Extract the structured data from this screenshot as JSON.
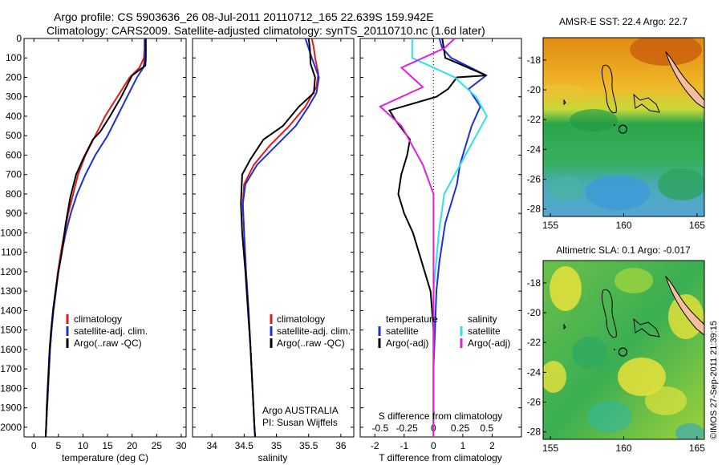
{
  "title": {
    "line1": "Argo profile: CS 5903636_26 08-Jul-2011 20110712_165 22.639S 159.942E",
    "line2": "Climatology: CARS2009. Satellite-adjusted climatology: synTS_20110710.nc (1.6d later)"
  },
  "footer_credit": "©IMOS 27-Sep-2011 21:39:15",
  "colors": {
    "climatology": "#e31a1c",
    "satellite": "#1f2fd6",
    "argo": "#000000",
    "salinity_satellite": "#2fe0e8",
    "salinity_argo": "#e020e0"
  },
  "chart_data": [
    {
      "type": "line",
      "name": "temperature-profile",
      "xlabel": "temperature (deg C)",
      "ylabel": "",
      "xlim": [
        -2,
        31
      ],
      "ylim": [
        2050,
        0
      ],
      "xticks": [
        0,
        5,
        10,
        15,
        20,
        25,
        30
      ],
      "yticks": [
        0,
        100,
        200,
        300,
        400,
        500,
        600,
        700,
        800,
        900,
        1000,
        1100,
        1200,
        1300,
        1400,
        1500,
        1600,
        1700,
        1800,
        1900,
        2000
      ],
      "legend": [
        "climatology",
        "satellite-adj. clim.",
        "Argo(..raw -QC)"
      ],
      "series": [
        {
          "name": "climatology",
          "color_key": "climatology",
          "points": [
            [
              22.5,
              0
            ],
            [
              22.5,
              50
            ],
            [
              22.4,
              100
            ],
            [
              21.5,
              150
            ],
            [
              19.5,
              200
            ],
            [
              17,
              300
            ],
            [
              14.5,
              400
            ],
            [
              12.5,
              500
            ],
            [
              10.5,
              600
            ],
            [
              9,
              700
            ],
            [
              8,
              800
            ],
            [
              7,
              900
            ],
            [
              6.2,
              1000
            ],
            [
              5.5,
              1100
            ],
            [
              4.9,
              1200
            ],
            [
              4.4,
              1300
            ],
            [
              3.9,
              1400
            ],
            [
              3.6,
              1500
            ],
            [
              3.3,
              1600
            ],
            [
              3.1,
              1700
            ],
            [
              2.9,
              1800
            ],
            [
              2.7,
              1900
            ],
            [
              2.5,
              2000
            ],
            [
              2.4,
              2050
            ]
          ]
        },
        {
          "name": "satellite-adj. clim.",
          "color_key": "satellite",
          "points": [
            [
              22.7,
              0
            ],
            [
              22.7,
              50
            ],
            [
              22.6,
              100
            ],
            [
              22.3,
              150
            ],
            [
              21,
              200
            ],
            [
              19,
              300
            ],
            [
              17,
              400
            ],
            [
              15,
              500
            ],
            [
              12.5,
              600
            ],
            [
              10.5,
              700
            ],
            [
              8.8,
              800
            ],
            [
              7.5,
              900
            ],
            [
              6.5,
              1000
            ],
            [
              5.7,
              1100
            ],
            [
              5,
              1200
            ],
            [
              4.5,
              1300
            ],
            [
              4,
              1400
            ],
            [
              3.6,
              1500
            ],
            [
              3.3,
              1600
            ],
            [
              3.1,
              1700
            ],
            [
              2.9,
              1800
            ],
            [
              2.7,
              1900
            ],
            [
              2.5,
              2000
            ],
            [
              2.4,
              2050
            ]
          ]
        },
        {
          "name": "Argo(..raw -QC)",
          "color_key": "argo",
          "points": [
            [
              22.8,
              0
            ],
            [
              22.8,
              50
            ],
            [
              22.8,
              100
            ],
            [
              22.7,
              140
            ],
            [
              20,
              190
            ],
            [
              17.8,
              300
            ],
            [
              15.5,
              400
            ],
            [
              13.5,
              480
            ],
            [
              12,
              520
            ],
            [
              10,
              620
            ],
            [
              8.6,
              700
            ],
            [
              7.4,
              820
            ],
            [
              6.5,
              950
            ],
            [
              5.7,
              1100
            ],
            [
              5,
              1200
            ],
            [
              4.4,
              1300
            ],
            [
              3.9,
              1400
            ],
            [
              3.5,
              1500
            ],
            [
              3.2,
              1600
            ],
            [
              3,
              1700
            ],
            [
              2.8,
              1800
            ],
            [
              2.6,
              1900
            ],
            [
              2.5,
              2000
            ],
            [
              2.4,
              2050
            ]
          ]
        }
      ]
    },
    {
      "type": "line",
      "name": "salinity-profile",
      "xlabel": "salinity",
      "ylabel": "",
      "xlim": [
        33.7,
        36.2
      ],
      "ylim": [
        2050,
        0
      ],
      "xticks": [
        34,
        34.5,
        35,
        35.5,
        36
      ],
      "legend": [
        "climatology",
        "satellite-adj. clim.",
        "Argo(..raw -QC)"
      ],
      "annotation": [
        "Argo AUSTRALIA",
        "PI: Susan Wijffels"
      ],
      "series": [
        {
          "name": "climatology",
          "color_key": "climatology",
          "points": [
            [
              35.55,
              0
            ],
            [
              35.58,
              50
            ],
            [
              35.6,
              100
            ],
            [
              35.65,
              180
            ],
            [
              35.62,
              250
            ],
            [
              35.45,
              350
            ],
            [
              35.2,
              450
            ],
            [
              34.9,
              550
            ],
            [
              34.65,
              650
            ],
            [
              34.5,
              750
            ],
            [
              34.48,
              850
            ],
            [
              34.5,
              1000
            ],
            [
              34.53,
              1200
            ],
            [
              34.57,
              1400
            ],
            [
              34.6,
              1600
            ],
            [
              34.63,
              1800
            ],
            [
              34.66,
              2000
            ],
            [
              34.67,
              2050
            ]
          ]
        },
        {
          "name": "satellite-adj. clim.",
          "color_key": "satellite",
          "points": [
            [
              35.45,
              0
            ],
            [
              35.5,
              50
            ],
            [
              35.55,
              100
            ],
            [
              35.66,
              200
            ],
            [
              35.62,
              280
            ],
            [
              35.5,
              350
            ],
            [
              35.3,
              450
            ],
            [
              35,
              550
            ],
            [
              34.7,
              650
            ],
            [
              34.52,
              750
            ],
            [
              34.48,
              850
            ],
            [
              34.5,
              1000
            ],
            [
              34.53,
              1200
            ],
            [
              34.57,
              1400
            ],
            [
              34.6,
              1600
            ],
            [
              34.63,
              1800
            ],
            [
              34.66,
              2000
            ],
            [
              34.67,
              2050
            ]
          ]
        },
        {
          "name": "Argo(..raw -QC)",
          "color_key": "argo",
          "points": [
            [
              35.5,
              0
            ],
            [
              35.52,
              50
            ],
            [
              35.53,
              130
            ],
            [
              35.6,
              200
            ],
            [
              35.58,
              280
            ],
            [
              35.35,
              350
            ],
            [
              35.1,
              450
            ],
            [
              34.8,
              520
            ],
            [
              34.6,
              620
            ],
            [
              34.47,
              700
            ],
            [
              34.45,
              850
            ],
            [
              34.47,
              1000
            ],
            [
              34.52,
              1200
            ],
            [
              34.56,
              1400
            ],
            [
              34.6,
              1600
            ],
            [
              34.63,
              1800
            ],
            [
              34.66,
              2000
            ],
            [
              34.67,
              2050
            ]
          ]
        }
      ]
    },
    {
      "type": "line",
      "name": "difference-profile",
      "xlabel": "T difference from climatology",
      "xlabel_top": "S difference from climatology",
      "xlim": [
        -2.5,
        3
      ],
      "ylim": [
        2050,
        0
      ],
      "xticks": [
        -2,
        -1,
        0,
        1,
        2
      ],
      "xticks_s": [
        -0.5,
        -0.25,
        0,
        0.25,
        0.5
      ],
      "legend_temperature": {
        "title": "temperature",
        "items": [
          "satellite",
          "Argo(-adj)"
        ]
      },
      "legend_salinity": {
        "title": "salinity",
        "items": [
          "satellite",
          "Argo(-adj)"
        ]
      },
      "series": [
        {
          "name": "satellite",
          "group": "temperature",
          "color_key": "satellite",
          "points": [
            [
              0.2,
              0
            ],
            [
              0.3,
              50
            ],
            [
              0.6,
              100
            ],
            [
              1.8,
              190
            ],
            [
              1.2,
              260
            ],
            [
              1.6,
              350
            ],
            [
              1.3,
              450
            ],
            [
              1.1,
              550
            ],
            [
              0.9,
              650
            ],
            [
              0.8,
              750
            ],
            [
              0.6,
              850
            ],
            [
              0.4,
              950
            ],
            [
              0.3,
              1050
            ],
            [
              0.2,
              1150
            ],
            [
              0.1,
              1300
            ],
            [
              0.05,
              1500
            ],
            [
              0,
              1700
            ],
            [
              0,
              2050
            ]
          ]
        },
        {
          "name": "Argo(-adj)",
          "group": "temperature",
          "color_key": "argo",
          "points": [
            [
              0.3,
              0
            ],
            [
              0.4,
              100
            ],
            [
              1.8,
              190
            ],
            [
              0.8,
              200
            ],
            [
              0.5,
              260
            ],
            [
              0.1,
              300
            ],
            [
              -1.5,
              370
            ],
            [
              -1.3,
              420
            ],
            [
              -1,
              480
            ],
            [
              -0.8,
              520
            ],
            [
              -0.9,
              600
            ],
            [
              -1.1,
              700
            ],
            [
              -1.2,
              800
            ],
            [
              -1,
              900
            ],
            [
              -0.7,
              1000
            ],
            [
              -0.5,
              1100
            ],
            [
              -0.3,
              1200
            ],
            [
              -0.1,
              1300
            ],
            [
              0,
              1500
            ],
            [
              0,
              2050
            ]
          ]
        },
        {
          "name": "satellite",
          "group": "salinity",
          "color_key": "salinity_satellite",
          "points": [
            [
              -0.2,
              0
            ],
            [
              -0.2,
              100
            ],
            [
              0.2,
              200
            ],
            [
              0.4,
              300
            ],
            [
              0.5,
              400
            ],
            [
              0.4,
              500
            ],
            [
              0.3,
              600
            ],
            [
              0.2,
              700
            ],
            [
              0.1,
              800
            ],
            [
              0.05,
              1000
            ],
            [
              0,
              1300
            ],
            [
              0,
              2050
            ]
          ]
        },
        {
          "name": "Argo(-adj)",
          "group": "salinity",
          "color_key": "salinity_argo",
          "points": [
            [
              0.2,
              0
            ],
            [
              0.1,
              50
            ],
            [
              -0.3,
              150
            ],
            [
              -0.1,
              250
            ],
            [
              -0.5,
              350
            ],
            [
              -0.3,
              450
            ],
            [
              -0.2,
              550
            ],
            [
              -0.1,
              650
            ],
            [
              0,
              800
            ],
            [
              0,
              1200
            ],
            [
              0,
              2050
            ]
          ]
        }
      ]
    },
    {
      "type": "heatmap",
      "name": "sst-map",
      "title": "AMSR-E SST: 22.4 Argo: 22.7",
      "xlim": [
        154.5,
        165.5
      ],
      "ylim": [
        -28.5,
        -16.5
      ],
      "xticks": [
        155,
        160,
        165
      ],
      "yticks": [
        -18,
        -20,
        -22,
        -24,
        -26,
        -28
      ],
      "marker": {
        "lon": 159.942,
        "lat": -22.639
      }
    },
    {
      "type": "heatmap",
      "name": "sla-map",
      "title": "Altimetric SLA: 0.1 Argo: -0.017",
      "xlim": [
        154.5,
        165.5
      ],
      "ylim": [
        -28.5,
        -16.5
      ],
      "xticks": [
        155,
        160,
        165
      ],
      "yticks": [
        -18,
        -20,
        -22,
        -24,
        -26,
        -28
      ],
      "marker": {
        "lon": 159.942,
        "lat": -22.639
      }
    }
  ]
}
